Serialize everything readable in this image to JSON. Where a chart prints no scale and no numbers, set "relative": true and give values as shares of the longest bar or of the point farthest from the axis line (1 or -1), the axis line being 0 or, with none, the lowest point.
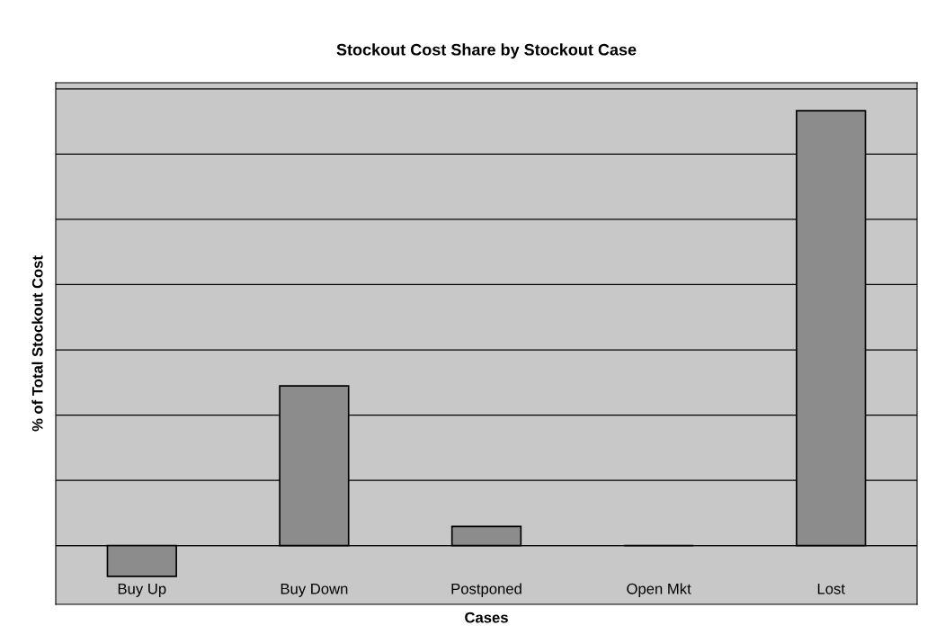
{
  "chart_data": {
    "type": "bar",
    "title": "Stockout Cost Share by Stockout Case",
    "xlabel": "Cases",
    "ylabel": "% of Total Stockout Cost",
    "categories": [
      "Buy Up",
      "Buy Down",
      "Postponed",
      "Open Mkt",
      "Lost"
    ],
    "values": [
      -0.071,
      0.367,
      0.044,
      0,
      1
    ],
    "color": "#8c8c8c",
    "relative": true,
    "grid": "y",
    "tick_labels": "x"
  }
}
